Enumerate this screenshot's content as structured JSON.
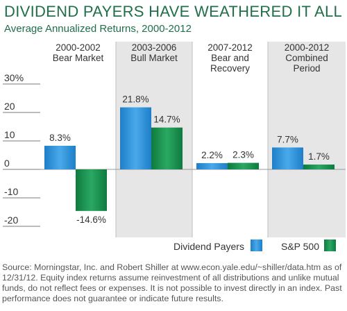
{
  "title": "DIVIDEND PAYERS HAVE WEATHERED IT ALL",
  "subtitle": "Average Annualized Returns, 2000-2012",
  "source": "Source: Morningstar, Inc. and Robert Shiller at www.econ.yale.edu/~shiller/data.htm as of 12/31/12. Equity index returns assume reinvestment of all distributions and unlike mutual funds, do not reflect fees or expenses. It is not possible to invest directly in an index. Past performance does not guarantee or indicate future results.",
  "colors": {
    "title": "#1f6f4a",
    "dividend_payers": "#2b8fd6",
    "sp500": "#1a8f4e",
    "panel_alt": "#e6e6e6",
    "axis": "#7a7a7a"
  },
  "chart_data": {
    "type": "bar",
    "title": "DIVIDEND PAYERS HAVE WEATHERED IT ALL",
    "subtitle": "Average Annualized Returns, 2000-2012",
    "categories": [
      [
        "2000-2002",
        "Bear Market"
      ],
      [
        "2003-2006",
        "Bull Market"
      ],
      [
        "2007-2012",
        "Bear and",
        "Recovery"
      ],
      [
        "2000-2012",
        "Combined",
        "Period"
      ]
    ],
    "series": [
      {
        "name": "Dividend Payers",
        "values": [
          8.3,
          21.8,
          2.2,
          7.7
        ],
        "labels": [
          "8.3%",
          "21.8%",
          "2.2%",
          "7.7%"
        ]
      },
      {
        "name": "S&P 500",
        "values": [
          -14.6,
          14.7,
          2.3,
          1.7
        ],
        "labels": [
          "-14.6%",
          "14.7%",
          "2.3%",
          "1.7%"
        ]
      }
    ],
    "yticks": [
      "30%",
      "20",
      "10",
      "0",
      "-10",
      "-20"
    ],
    "ytick_values": [
      30,
      20,
      10,
      0,
      -10,
      -20
    ],
    "ylim": [
      -20,
      30
    ],
    "legend_position": "bottom-right",
    "grid": false
  }
}
